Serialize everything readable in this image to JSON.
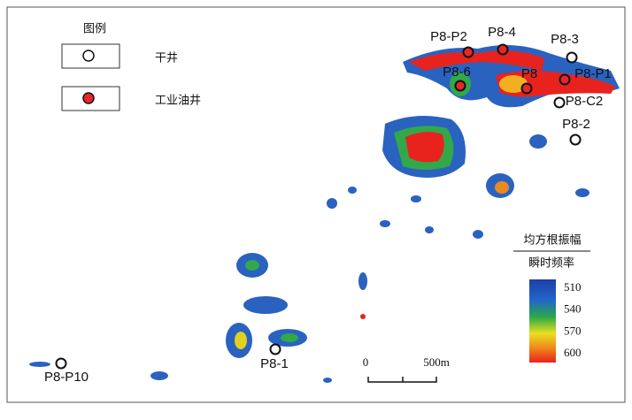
{
  "legend": {
    "title": "图例",
    "items": [
      {
        "label": "干井",
        "color": "#ffffff"
      },
      {
        "label": "工业油井",
        "color": "#e8262a"
      }
    ]
  },
  "wells": [
    {
      "label": "P8-P2",
      "color": "#e8262a"
    },
    {
      "label": "P8-4",
      "color": "#e8262a"
    },
    {
      "label": "P8-3",
      "color": "#ffffff"
    },
    {
      "label": "P8-6",
      "color": "#e8262a"
    },
    {
      "label": "P8",
      "color": "#e8262a"
    },
    {
      "label": "P8-P1",
      "color": "#e8262a"
    },
    {
      "label": "P8-C2",
      "color": "#ffffff"
    },
    {
      "label": "P8-2",
      "color": "#ffffff"
    },
    {
      "label": "P8-1",
      "color": "#ffffff"
    },
    {
      "label": "P8-P10",
      "color": "#ffffff"
    }
  ],
  "scale_bar": {
    "start": "0",
    "end": "500m"
  },
  "colorbar": {
    "title": "均方根振幅",
    "subtitle": "瞬时频率",
    "ticks": [
      510,
      540,
      570,
      600
    ]
  }
}
